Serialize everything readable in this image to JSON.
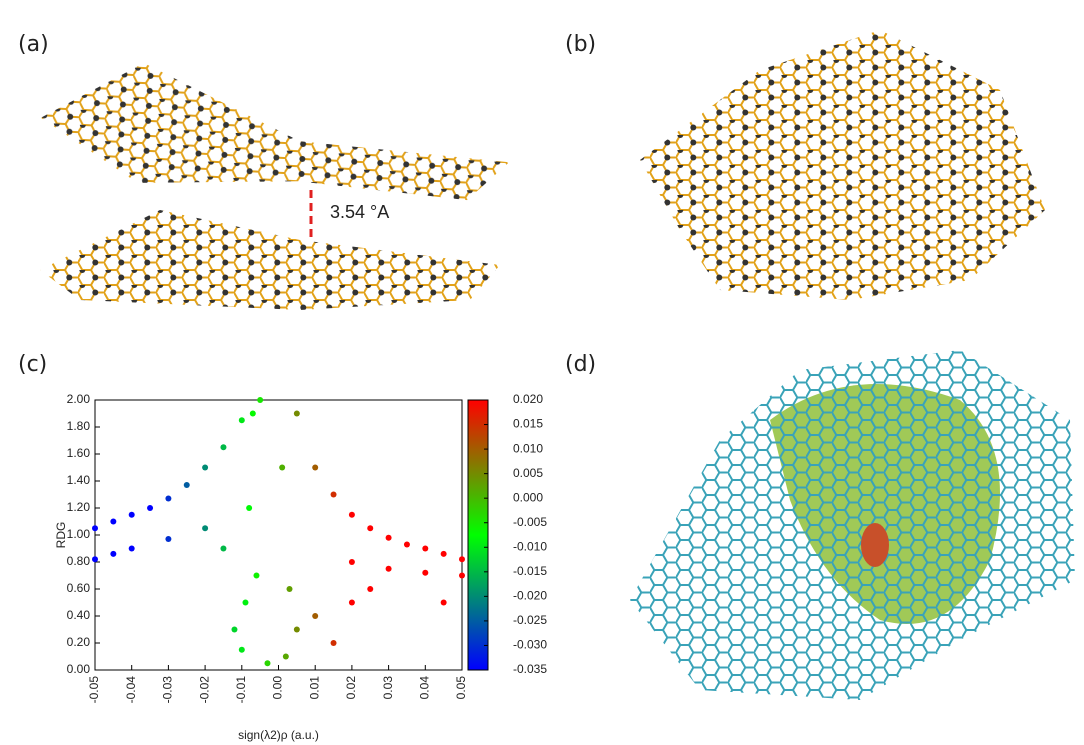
{
  "panels": {
    "a": "(a)",
    "b": "(b)",
    "c": "(c)",
    "d": "(d)"
  },
  "annotation": "3.54 °A",
  "chart_data": {
    "type": "scatter",
    "xlabel": "sign(λ2)ρ (a.u.)",
    "ylabel": "RDG",
    "xlim": [
      -0.05,
      0.05
    ],
    "xticks": [
      -0.05,
      -0.04,
      -0.03,
      -0.02,
      -0.01,
      {
        "value": 0,
        "label": "0.00"
      },
      0.01,
      0.02,
      0.03,
      0.04,
      0.05
    ],
    "ylim": [
      0,
      2
    ],
    "yticks": [
      {
        "value": 0,
        "label": "0.00"
      },
      {
        "value": 0.2,
        "label": "0.20"
      },
      {
        "value": 0.4,
        "label": "0.40"
      },
      {
        "value": 0.6,
        "label": "0.60"
      },
      {
        "value": 0.8,
        "label": "0.80"
      },
      {
        "value": 1,
        "label": "1.00"
      },
      {
        "value": 1.2,
        "label": "1.20"
      },
      {
        "value": 1.4,
        "label": "1.40"
      },
      {
        "value": 1.6,
        "label": "1.60"
      },
      {
        "value": 1.8,
        "label": "1.80"
      },
      {
        "value": 2,
        "label": "2.00"
      }
    ],
    "x": [
      -0.05,
      -0.045,
      -0.04,
      -0.035,
      -0.03,
      -0.025,
      -0.02,
      -0.015,
      -0.01,
      -0.05,
      -0.045,
      -0.04,
      -0.03,
      -0.02,
      -0.012,
      -0.01,
      -0.009,
      -0.008,
      -0.007,
      -0.005,
      -0.003,
      0.001,
      0.002,
      0.003,
      0.005,
      0.005,
      0.01,
      0.015,
      0.02,
      0.025,
      0.03,
      0.035,
      0.04,
      0.045,
      0.05,
      0.02,
      0.03,
      0.04,
      0.05,
      0.01,
      0.015,
      0.02,
      0.025,
      0.045,
      -0.015,
      -0.006
    ],
    "y": [
      1.05,
      1.1,
      1.15,
      1.2,
      1.27,
      1.37,
      1.5,
      1.65,
      1.85,
      0.82,
      0.86,
      0.9,
      0.97,
      1.05,
      0.3,
      0.15,
      0.5,
      1.2,
      1.9,
      2.0,
      0.05,
      1.5,
      0.1,
      0.6,
      0.3,
      1.9,
      1.5,
      1.3,
      1.15,
      1.05,
      0.98,
      0.93,
      0.9,
      0.86,
      0.82,
      0.8,
      0.75,
      0.72,
      0.7,
      0.4,
      0.2,
      0.5,
      0.6,
      0.5,
      0.9,
      0.7
    ],
    "colorbar": {
      "clim": [
        -0.035,
        0.02
      ],
      "colors": [
        "#0000ff",
        "#00ff00",
        "#ff0000"
      ],
      "ticks": [
        {
          "value": 0.02,
          "label": "0.020"
        },
        {
          "value": 0.015,
          "label": "0.015"
        },
        {
          "value": 0.01,
          "label": "0.010"
        },
        {
          "value": 0.005,
          "label": "0.005"
        },
        {
          "value": 0,
          "label": "0.000"
        },
        {
          "value": -0.005,
          "label": "-0.005"
        },
        {
          "value": -0.01,
          "label": "-0.010"
        },
        {
          "value": -0.015,
          "label": "-0.015"
        },
        {
          "value": -0.02,
          "label": "-0.020"
        },
        {
          "value": -0.025,
          "label": "-0.025"
        },
        {
          "value": -0.03,
          "label": "-0.030"
        },
        {
          "value": -0.035,
          "label": "-0.035"
        }
      ]
    }
  }
}
